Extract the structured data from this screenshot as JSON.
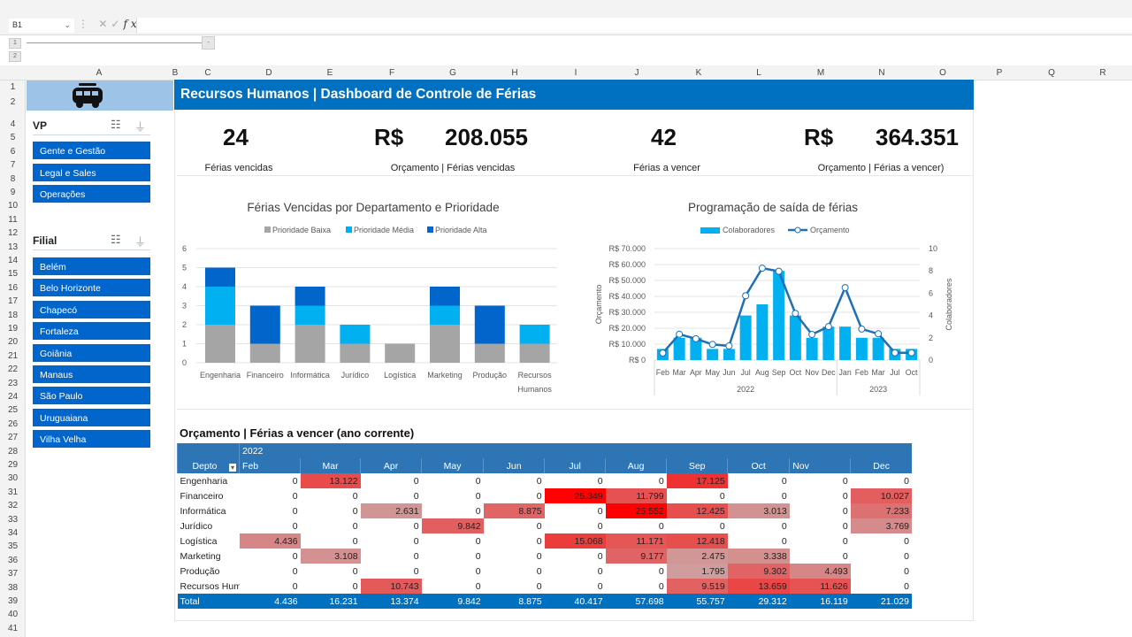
{
  "formula_bar": {
    "name_box": "B1",
    "fx": "fx",
    "cancel": "✕",
    "confirm": "✓",
    "value": ""
  },
  "outline": {
    "levels": [
      "1",
      "2"
    ],
    "collapse": "-"
  },
  "columns": [
    "A",
    "B",
    "C",
    "D",
    "E",
    "F",
    "G",
    "H",
    "I",
    "J",
    "K",
    "L",
    "M",
    "N",
    "O",
    "P",
    "Q",
    "R"
  ],
  "rows": [
    "1",
    "2",
    "4",
    "5",
    "6",
    "7",
    "8",
    "9",
    "10",
    "11",
    "12",
    "13",
    "14",
    "15",
    "16",
    "17",
    "18",
    "19",
    "20",
    "21",
    "22",
    "23",
    "24",
    "25",
    "26",
    "27",
    "28",
    "29",
    "30",
    "31",
    "32",
    "33",
    "34",
    "35",
    "36",
    "37",
    "38",
    "39",
    "40",
    "41"
  ],
  "sidebar": {
    "logo": "van-icon",
    "vp": {
      "title": "VP",
      "items": [
        "Gente e Gestão",
        "Legal e Sales",
        "Operações"
      ]
    },
    "filial": {
      "title": "Filial",
      "items": [
        "Belém",
        "Belo Horizonte",
        "Chapecó",
        "Fortaleza",
        "Goiânia",
        "Manaus",
        "São Paulo",
        "Uruguaiana",
        "Vilha Velha"
      ]
    }
  },
  "dashboard": {
    "title": "Recursos Humanos | Dashboard de Controle de Férias",
    "kpis": [
      {
        "value": "24",
        "currency": "",
        "label": "Férias vencidas"
      },
      {
        "value": "208.055",
        "currency": "R$",
        "label": "Orçamento | Férias vencidas"
      },
      {
        "value": "42",
        "currency": "",
        "label": "Férias a vencer"
      },
      {
        "value": "364.351",
        "currency": "R$",
        "label": "Orçamento | Férias a vencer)"
      }
    ]
  },
  "colors": {
    "baixa": "#a5a5a5",
    "media": "#00b0f0",
    "alta": "#0066cc",
    "title_bar": "#0070c0",
    "line": "#1f6fb5"
  },
  "chart_data": [
    {
      "type": "bar",
      "stacked": true,
      "title": "Férias Vencidas por Departamento e Prioridade",
      "legend": "top",
      "categories": [
        "Engenharia",
        "Financeiro",
        "Informática",
        "Jurídico",
        "Logística",
        "Marketing",
        "Produção",
        "Recursos Humanos"
      ],
      "series": [
        {
          "name": "Prioridade Baixa",
          "values": [
            2,
            1,
            2,
            1,
            1,
            2,
            1,
            1
          ]
        },
        {
          "name": "Prioridade Média",
          "values": [
            2,
            0,
            1,
            1,
            0,
            1,
            0,
            1
          ]
        },
        {
          "name": "Prioridade Alta",
          "values": [
            1,
            2,
            1,
            0,
            0,
            1,
            2,
            0
          ]
        }
      ],
      "ylim": [
        0,
        6
      ],
      "yticks": [
        "0",
        "1",
        "2",
        "3",
        "4",
        "5",
        "6"
      ],
      "grid": true
    },
    {
      "type": "bar+line",
      "title": "Programação de saída de férias",
      "legend": "top",
      "categories": [
        "Feb",
        "Mar",
        "Apr",
        "May",
        "Jun",
        "Jul",
        "Aug",
        "Sep",
        "Oct",
        "Nov",
        "Dec",
        "Jan",
        "Feb",
        "Mar",
        "Jul",
        "Oct"
      ],
      "groups": [
        {
          "label": "2022",
          "count": 11
        },
        {
          "label": "2023",
          "count": 5
        }
      ],
      "series": [
        {
          "name": "Colaboradores",
          "type": "bar",
          "axis": "right",
          "values": [
            1,
            2,
            2,
            1,
            1,
            4,
            5,
            8,
            4,
            2,
            3,
            3,
            2,
            2,
            1,
            1
          ]
        },
        {
          "name": "Orçamento",
          "type": "line",
          "axis": "left",
          "values": [
            4436,
            16231,
            13374,
            9842,
            8875,
            40417,
            57698,
            55757,
            29312,
            16119,
            21029,
            45500,
            19500,
            16500,
            4600,
            4600
          ]
        }
      ],
      "ylabel_left": "Orçamento",
      "ylabel_right": "Colaboradores",
      "ylim_left": [
        0,
        70000
      ],
      "yticks_left": [
        "R$ 0",
        "R$ 10.000",
        "R$ 20.000",
        "R$ 30.000",
        "R$ 40.000",
        "R$ 50.000",
        "R$ 60.000",
        "R$ 70.000"
      ],
      "ylim_right": [
        0,
        10
      ],
      "yticks_right": [
        "0",
        "2",
        "4",
        "6",
        "8",
        "10"
      ],
      "grid": true
    }
  ],
  "pivot": {
    "title": "Orçamento | Férias a vencer (ano corrente)",
    "year": "2022",
    "row_header": "Depto",
    "months": [
      "Feb",
      "Mar",
      "Apr",
      "May",
      "Jun",
      "Jul",
      "Aug",
      "Sep",
      "Oct",
      "Nov",
      "Dec"
    ],
    "rows": [
      {
        "depto": "Engenharia",
        "values": [
          "0",
          "13.122",
          "0",
          "0",
          "0",
          "0",
          "0",
          "17.125",
          "0",
          "0",
          "0"
        ]
      },
      {
        "depto": "Financeiro",
        "values": [
          "0",
          "0",
          "0",
          "0",
          "0",
          "25.349",
          "11.799",
          "0",
          "0",
          "0",
          "10.027"
        ]
      },
      {
        "depto": "Informática",
        "values": [
          "0",
          "0",
          "2.631",
          "0",
          "8.875",
          "0",
          "25.552",
          "12.425",
          "3.013",
          "0",
          "7.233"
        ]
      },
      {
        "depto": "Jurídico",
        "values": [
          "0",
          "0",
          "0",
          "9.842",
          "0",
          "0",
          "0",
          "0",
          "0",
          "0",
          "3.769"
        ]
      },
      {
        "depto": "Logística",
        "values": [
          "4.436",
          "0",
          "0",
          "0",
          "0",
          "15.068",
          "11.171",
          "12.418",
          "0",
          "0",
          "0"
        ]
      },
      {
        "depto": "Marketing",
        "values": [
          "0",
          "3.108",
          "0",
          "0",
          "0",
          "0",
          "9.177",
          "2.475",
          "3.338",
          "0",
          "0"
        ]
      },
      {
        "depto": "Produção",
        "values": [
          "0",
          "0",
          "0",
          "0",
          "0",
          "0",
          "0",
          "1.795",
          "9.302",
          "4.493",
          "0"
        ]
      },
      {
        "depto": "Recursos Hum",
        "values": [
          "0",
          "0",
          "10.743",
          "0",
          "0",
          "0",
          "0",
          "9.519",
          "13.659",
          "11.626",
          "0"
        ]
      }
    ],
    "total_label": "Total",
    "totals": [
      "4.436",
      "16.231",
      "13.374",
      "9.842",
      "8.875",
      "40.417",
      "57.698",
      "55.757",
      "29.312",
      "16.119",
      "21.029"
    ]
  }
}
